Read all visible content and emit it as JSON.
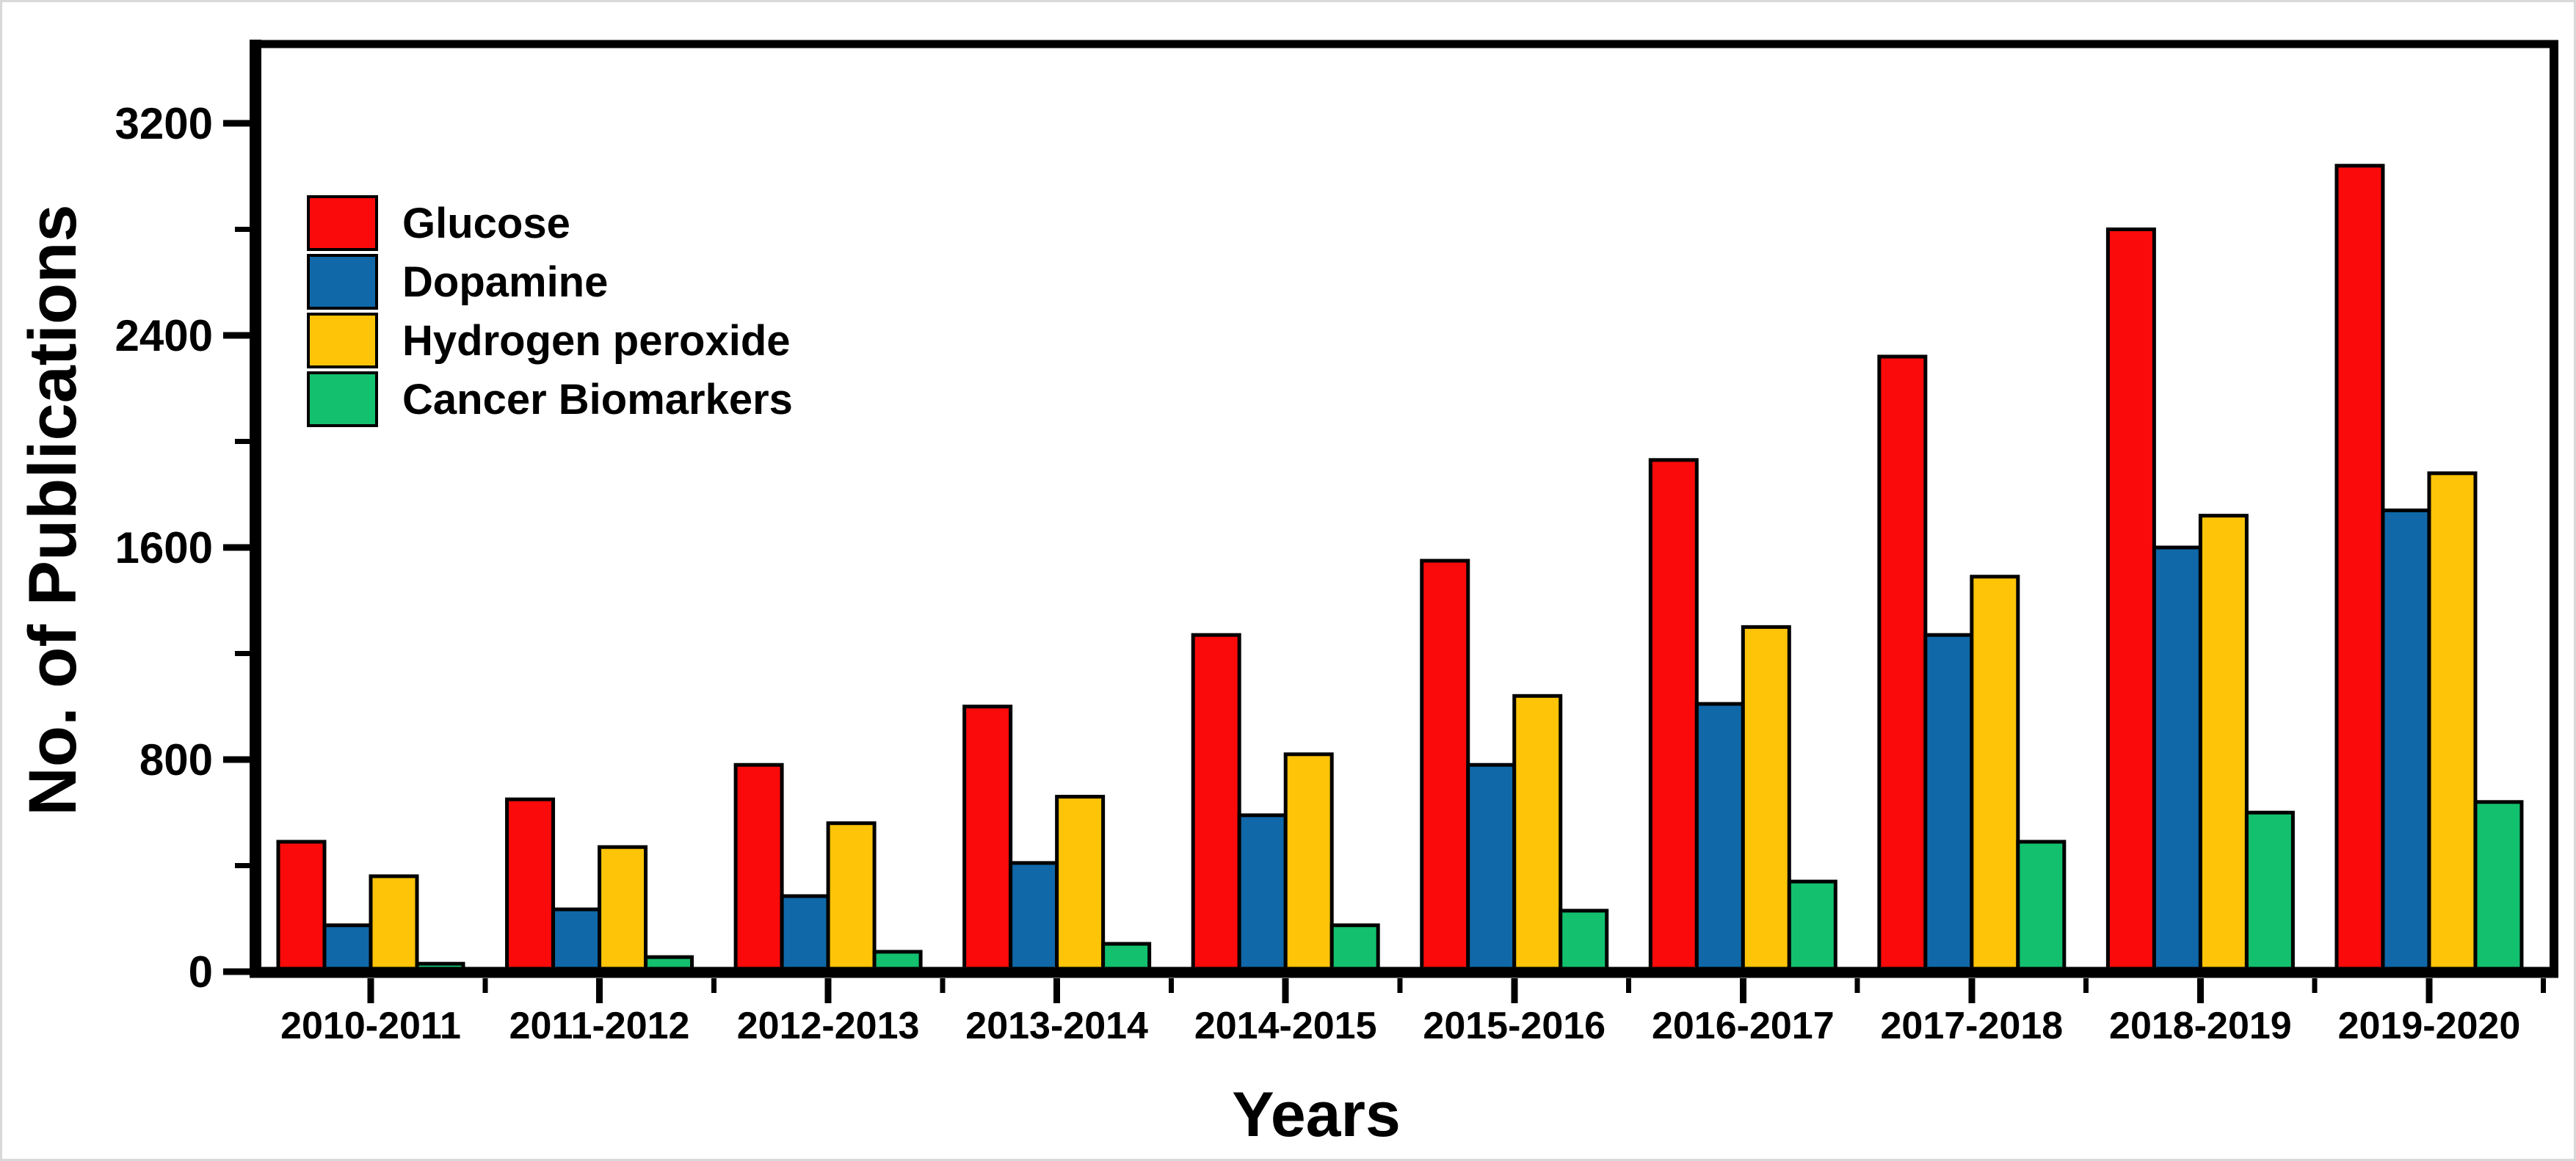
{
  "figure": {
    "background": "#ffffff",
    "frame_color": "#d8d8d8",
    "axis_color": "#000000",
    "text_color": "#000000"
  },
  "chart_data": {
    "type": "bar",
    "title": "",
    "xlabel": "Years",
    "ylabel": "No. of Publications",
    "categories": [
      "2010-2011",
      "2011-2012",
      "2012-2013",
      "2013-2014",
      "2014-2015",
      "2015-2016",
      "2016-2017",
      "2017-2018",
      "2018-2019",
      "2019-2020"
    ],
    "series": [
      {
        "name": "Glucose",
        "color": "#fa0a0a",
        "values": [
          490,
          650,
          780,
          1000,
          1270,
          1550,
          1930,
          2320,
          2800,
          3040
        ]
      },
      {
        "name": "Dopamine",
        "color": "#1068a8",
        "values": [
          175,
          235,
          285,
          410,
          590,
          780,
          1010,
          1270,
          1600,
          1740
        ]
      },
      {
        "name": "Hydrogen peroxide",
        "color": "#fdc408",
        "values": [
          360,
          470,
          560,
          660,
          820,
          1040,
          1300,
          1490,
          1720,
          1880
        ]
      },
      {
        "name": "Cancer Biomarkers",
        "color": "#13c06e",
        "values": [
          30,
          55,
          75,
          105,
          175,
          230,
          340,
          490,
          600,
          640
        ]
      }
    ],
    "y_axis": {
      "min": 0,
      "max": 3200,
      "major_ticks": [
        0,
        800,
        1600,
        2400,
        3200
      ],
      "minor_ticks": [
        400,
        1200,
        2000,
        2800
      ]
    },
    "x_axis": {
      "major_ticks_at": "category-centers",
      "minor_ticks_at": "category-boundaries"
    },
    "legend": {
      "position": "top-left",
      "entries": [
        "Glucose",
        "Dopamine",
        "Hydrogen peroxide",
        "Cancer Biomarkers"
      ]
    },
    "grid": false,
    "bar_outline_color": "#000000"
  }
}
